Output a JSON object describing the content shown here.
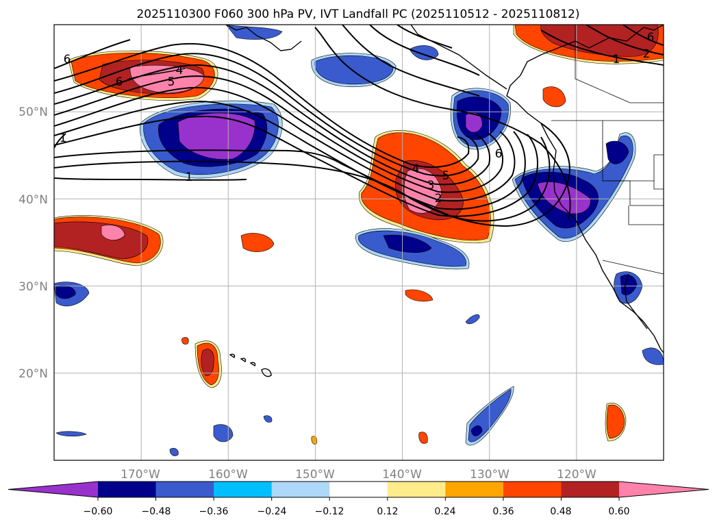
{
  "title": "2025110300 F060 300 hPa PV, IVT Landfall PC (2025110512 - 2025110812)",
  "map": {
    "lon_labels": [
      "170°W",
      "160°W",
      "150°W",
      "140°W",
      "130°W",
      "120°W"
    ],
    "lat_labels": [
      "50°N",
      "40°N",
      "30°N",
      "20°N"
    ],
    "lon_ticks": [
      -170,
      -160,
      -150,
      -140,
      -130,
      -120
    ],
    "lat_ticks": [
      50,
      40,
      30,
      20
    ],
    "lon_range": [
      -180,
      -110
    ],
    "lat_range": [
      10,
      60
    ],
    "contour_labels": [
      "6",
      "6",
      "5",
      "4",
      "1",
      "1",
      "4",
      "5",
      "3",
      "2",
      "6",
      "1",
      "2",
      "6"
    ]
  },
  "colorbar": {
    "ticks": [
      "−0.60",
      "−0.48",
      "−0.36",
      "−0.24",
      "−0.12",
      "0.12",
      "0.24",
      "0.36",
      "0.48",
      "0.60"
    ],
    "colors": [
      "#9932cc",
      "#00008b",
      "#3a5bcd",
      "#00bfff",
      "#add8f8",
      "#ffffff",
      "#ffec8b",
      "#ffa500",
      "#ff4500",
      "#b22222",
      "#ff82ab"
    ]
  }
}
